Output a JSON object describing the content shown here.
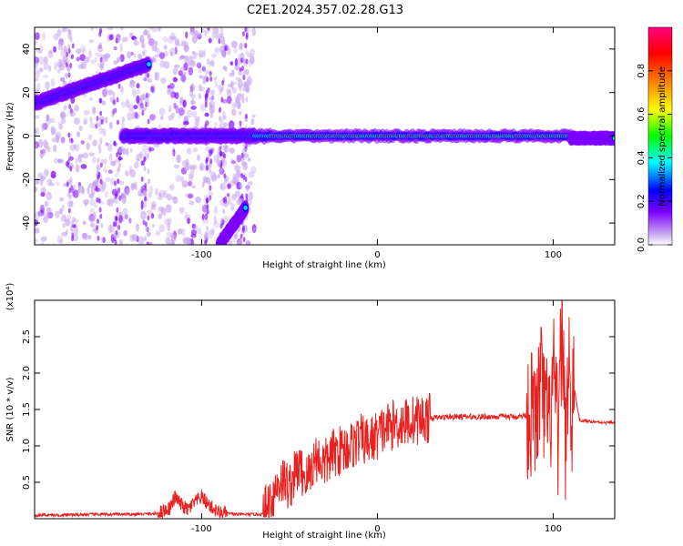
{
  "title": "C2E1.2024.357.02.28.G13",
  "chart_data": [
    {
      "type": "heatmap",
      "xlabel": "Height of straight line (km)",
      "ylabel": "Frequency (Hz)",
      "xlim": [
        -195,
        135
      ],
      "ylim": [
        -50,
        50
      ],
      "xticks": [
        -100,
        0,
        100
      ],
      "xtick_labels": [
        "-100",
        "0",
        "100"
      ],
      "yticks": [
        -40,
        -20,
        0,
        20,
        40
      ],
      "ytick_labels": [
        "-40",
        "-20",
        "0",
        "20",
        "40"
      ],
      "colorbar": {
        "label": "Normalized spectral amplitude",
        "range": [
          0,
          1
        ],
        "ticks": [
          0.0,
          0.2,
          0.4,
          0.6,
          0.8
        ],
        "tick_labels": [
          "0.0",
          "0.2",
          "0.4",
          "0.6",
          "0.8"
        ],
        "colors": [
          "#ffffff",
          "#c8a8f0",
          "#7f00ff",
          "#0000ff",
          "#00ffff",
          "#00ff00",
          "#ffff00",
          "#ff8000",
          "#ff0000",
          "#ff0080"
        ]
      },
      "ridges": [
        {
          "x": [
            -195,
            -130
          ],
          "y": [
            15,
            33
          ]
        },
        {
          "x": [
            -90,
            -75
          ],
          "y": [
            -50,
            -33
          ]
        },
        {
          "x": [
            -145,
            -70
          ],
          "y": [
            0,
            0
          ]
        },
        {
          "x": [
            -70,
            110
          ],
          "y": [
            0,
            0
          ]
        },
        {
          "x": [
            110,
            135
          ],
          "y": [
            -1,
            -1
          ]
        }
      ]
    },
    {
      "type": "line",
      "xlabel": "Height of straight line (km)",
      "ylabel": "SNR (10 * v/v)",
      "scale_label": "(x10⁴)",
      "xlim": [
        -195,
        135
      ],
      "ylim": [
        0,
        3.0
      ],
      "xticks": [
        -100,
        0,
        100
      ],
      "xtick_labels": [
        "-100",
        "0",
        "100"
      ],
      "yticks": [
        0.5,
        1.0,
        1.5,
        2.0,
        2.5
      ],
      "ytick_labels": [
        "0.5",
        "1.0",
        "1.5",
        "2.0",
        "2.5"
      ],
      "series": [
        {
          "color": "#e8201e",
          "x": [
            -195,
            -180,
            -160,
            -140,
            -125,
            -118,
            -115,
            -112,
            -108,
            -105,
            -100,
            -97,
            -94,
            -90,
            -80,
            -65,
            -60,
            -55,
            -50,
            -45,
            -40,
            -35,
            -30,
            -25,
            -20,
            -15,
            -10,
            -5,
            0,
            5,
            10,
            15,
            20,
            25,
            30,
            40,
            50,
            60,
            70,
            80,
            85,
            88,
            90,
            93,
            95,
            98,
            100,
            103,
            105,
            107,
            109,
            110,
            112,
            115,
            120,
            125,
            130,
            135
          ],
          "y": [
            0.05,
            0.05,
            0.06,
            0.06,
            0.07,
            0.15,
            0.3,
            0.2,
            0.12,
            0.2,
            0.3,
            0.22,
            0.15,
            0.08,
            0.06,
            0.06,
            0.3,
            0.55,
            0.45,
            0.7,
            0.55,
            0.85,
            0.75,
            0.9,
            0.95,
            1.0,
            1.1,
            1.05,
            1.15,
            1.25,
            1.3,
            1.32,
            1.35,
            1.37,
            1.38,
            1.4,
            1.4,
            1.4,
            1.4,
            1.4,
            1.42,
            1.45,
            1.3,
            1.9,
            1.5,
            1.2,
            2.0,
            1.0,
            2.8,
            1.1,
            2.3,
            1.0,
            1.8,
            1.35,
            1.34,
            1.33,
            1.32,
            1.32
          ]
        }
      ]
    }
  ]
}
